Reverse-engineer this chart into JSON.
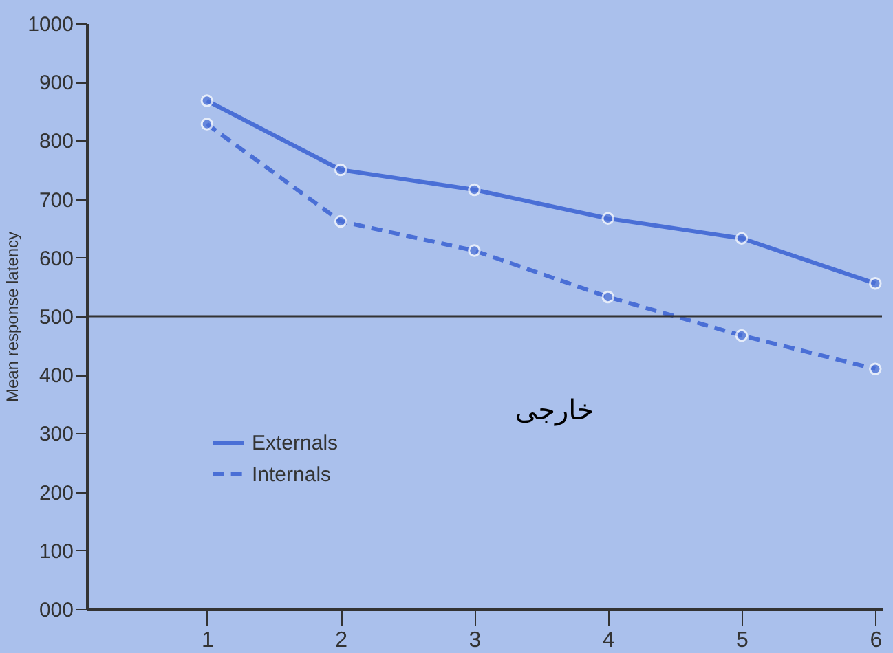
{
  "chart_data": {
    "type": "line",
    "ylabel": "Mean response latency",
    "x": [
      1,
      2,
      3,
      4,
      5,
      6
    ],
    "series": [
      {
        "name": "Externals",
        "color": "#4a6fd6",
        "values": [
          868,
          750,
          716,
          667,
          633,
          556
        ],
        "line_style": "solid"
      },
      {
        "name": "Internals",
        "color": "#4a6fd6",
        "values": [
          828,
          662,
          612,
          533,
          467,
          410
        ],
        "line_style": "dashed"
      }
    ],
    "xlim": [
      0.1,
      6.05
    ],
    "xticks": [
      1,
      2,
      3,
      4,
      5,
      6
    ],
    "ylim": [
      0,
      1000
    ],
    "yticks": [
      {
        "value": 0,
        "label": "000"
      },
      100,
      200,
      300,
      400,
      500,
      600,
      700,
      800,
      900,
      1000
    ],
    "ref_lines": [
      {
        "axis": "y",
        "value": 500,
        "color": "#333333"
      }
    ],
    "annotations": [
      "خارجی"
    ],
    "marker": "circle",
    "grid": false,
    "legend": "bottom left"
  }
}
